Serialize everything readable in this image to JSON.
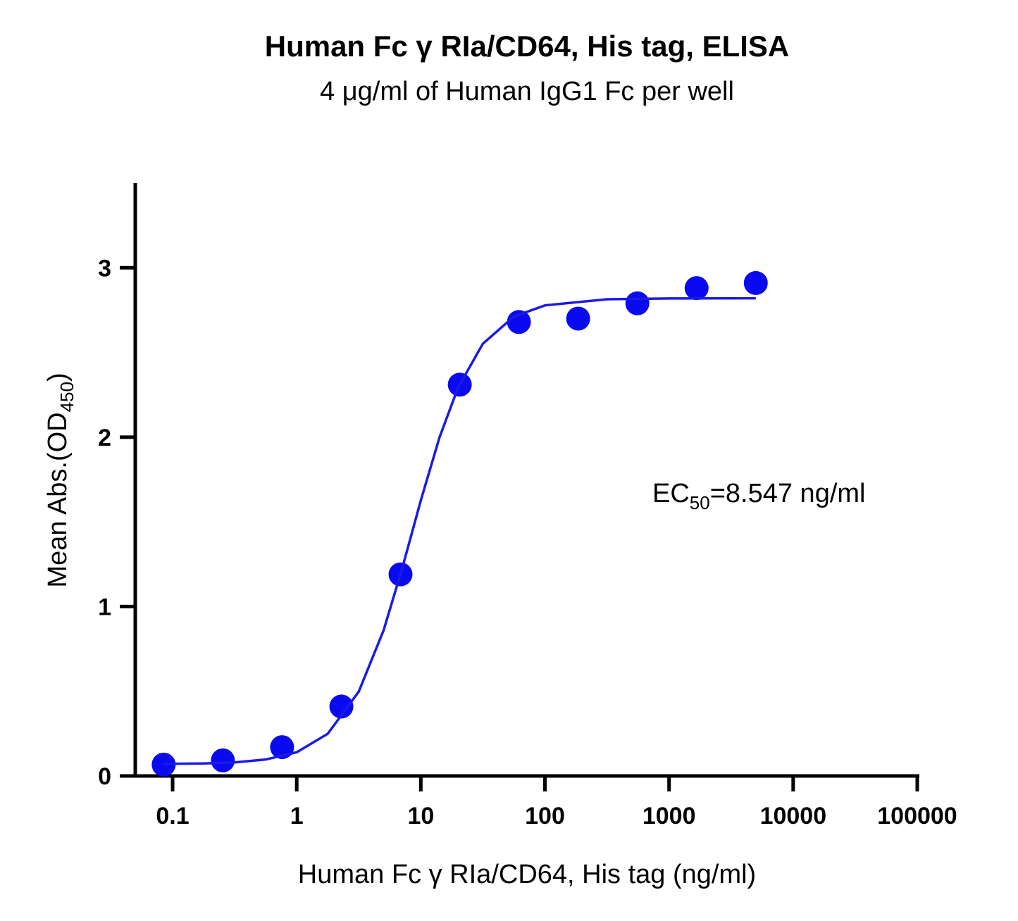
{
  "chart_data": {
    "type": "scatter",
    "title": "Human Fc γ RIa/CD64, His tag, ELISA",
    "subtitle": "4 μg/ml of Human IgG1 Fc per well",
    "x_label": "Human Fc γ RIa/CD64, His tag (ng/ml)",
    "y_label": {
      "text": "Mean Abs.(OD",
      "subscript": "450",
      "end": ")"
    },
    "annotation": {
      "text": "EC",
      "subscript": "50",
      "end": "=8.547 ng/ml"
    },
    "x_log": true,
    "xlim": [
      0.05,
      100000
    ],
    "xticks": [
      0.1,
      1,
      10,
      100,
      1000,
      10000,
      100000
    ],
    "ylim": [
      0,
      3.5
    ],
    "yticks": [
      0,
      1,
      2,
      3
    ],
    "series": [
      {
        "color": "#0a0af0",
        "kind": "points",
        "x": [
          0.0847,
          0.254,
          0.762,
          2.29,
          6.86,
          20.6,
          61.7,
          185.2,
          555.6,
          1666.7,
          5000
        ],
        "values": [
          0.067,
          0.092,
          0.17,
          0.41,
          1.19,
          2.31,
          2.68,
          2.7,
          2.79,
          2.88,
          2.91
        ]
      },
      {
        "color": "#1a1ae6",
        "kind": "line",
        "x": [
          0.0847,
          0.178,
          0.316,
          0.562,
          1,
          1.778,
          3.162,
          5.012,
          7.079,
          10,
          14.13,
          19.95,
          31.62,
          56.23,
          100,
          316.2,
          1000,
          5000
        ],
        "values": [
          0.071,
          0.074,
          0.08,
          0.097,
          0.14,
          0.249,
          0.498,
          0.86,
          1.226,
          1.627,
          1.998,
          2.293,
          2.552,
          2.712,
          2.778,
          2.814,
          2.819,
          2.82
        ]
      }
    ]
  }
}
